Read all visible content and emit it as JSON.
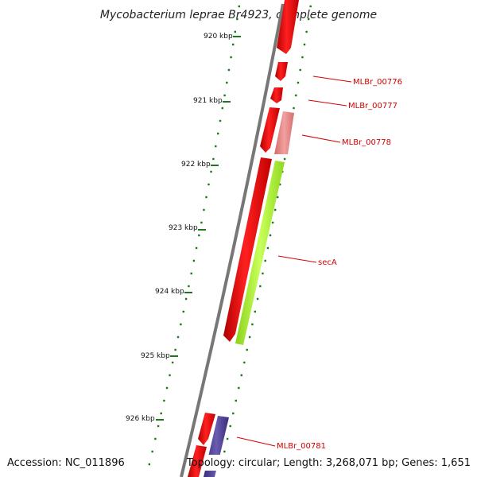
{
  "title": "Mycobacterium leprae Br4923, complete genome",
  "ticks": [
    {
      "label": "920 kbp"
    },
    {
      "label": "921 kbp"
    },
    {
      "label": "922 kbp"
    },
    {
      "label": "923 kbp"
    },
    {
      "label": "924 kbp"
    },
    {
      "label": "925 kbp"
    },
    {
      "label": "926 kbp"
    }
  ],
  "genes": [
    {
      "label": "MLBr_00776",
      "color": "#e30000"
    },
    {
      "label": "MLBr_00777",
      "color": "#e30000"
    },
    {
      "label": "MLBr_00778",
      "color": "#e58585"
    },
    {
      "label": "secA",
      "color": "#a6f032"
    },
    {
      "label": "MLBr_00781",
      "color": "#4a3c8c"
    }
  ],
  "colors": {
    "backbone": "#777777",
    "forward_gene": "#e30000",
    "tick": "#1a7a1a",
    "label": "#d40000"
  },
  "footer": {
    "accession": "Accession: NC_011896",
    "stats": "Topology: circular; Length: 3,268,071 bp; Genes: 1,651"
  }
}
